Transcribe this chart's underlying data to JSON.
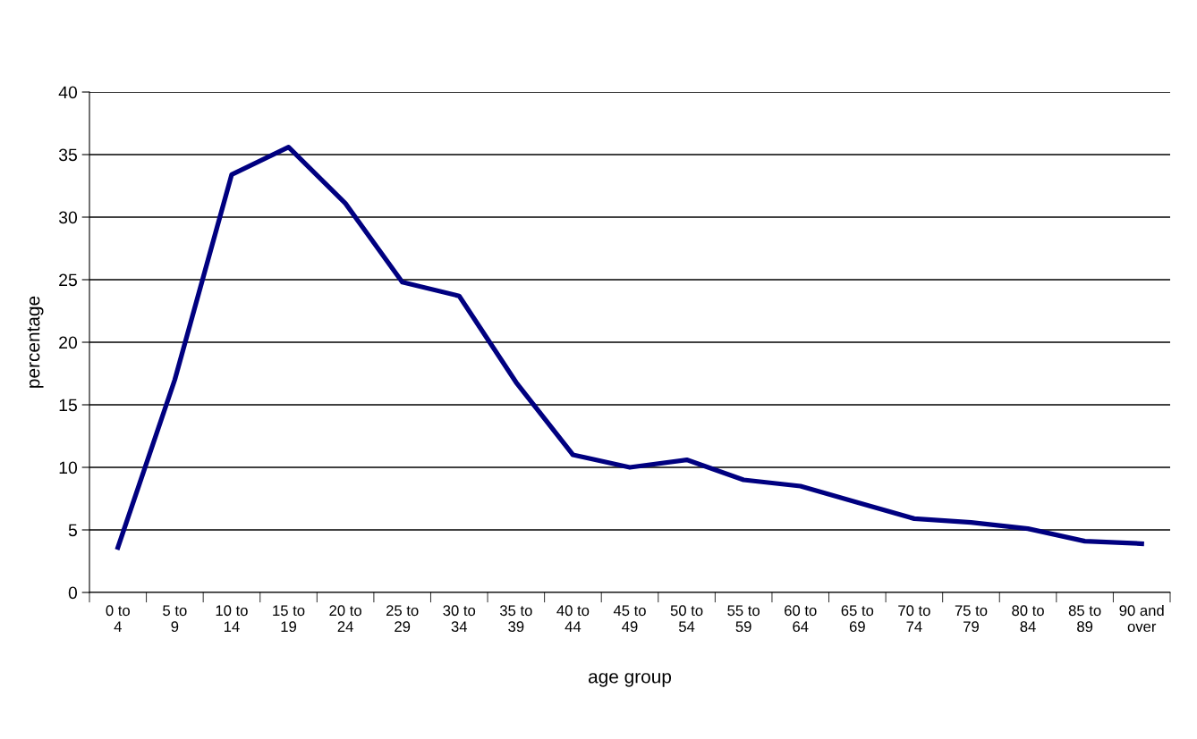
{
  "chart_data": {
    "type": "line",
    "xlabel": "age group",
    "ylabel": "percentage",
    "categories": [
      "0 to\n4",
      "5 to\n9",
      "10 to\n14",
      "15 to\n19",
      "20 to\n24",
      "25 to\n29",
      "30 to\n34",
      "35 to\n39",
      "40 to\n44",
      "45 to\n49",
      "50 to\n54",
      "55 to\n59",
      "60 to\n64",
      "65 to\n69",
      "70 to\n74",
      "75 to\n79",
      "80 to\n84",
      "85 to\n89",
      "90 and\nover"
    ],
    "series": [
      {
        "color": "#000080",
        "values": [
          3.6,
          17.0,
          33.4,
          35.6,
          31.1,
          24.8,
          23.7,
          16.8,
          11.0,
          10.0,
          10.6,
          9.0,
          8.5,
          7.2,
          5.9,
          5.6,
          5.1,
          4.1,
          3.9
        ]
      }
    ],
    "ylim": [
      0,
      40
    ],
    "yticks": [
      0,
      5,
      10,
      15,
      20,
      25,
      30,
      35,
      40
    ],
    "grid": "y",
    "marker": "none",
    "line_style": "solid",
    "legend": false
  }
}
